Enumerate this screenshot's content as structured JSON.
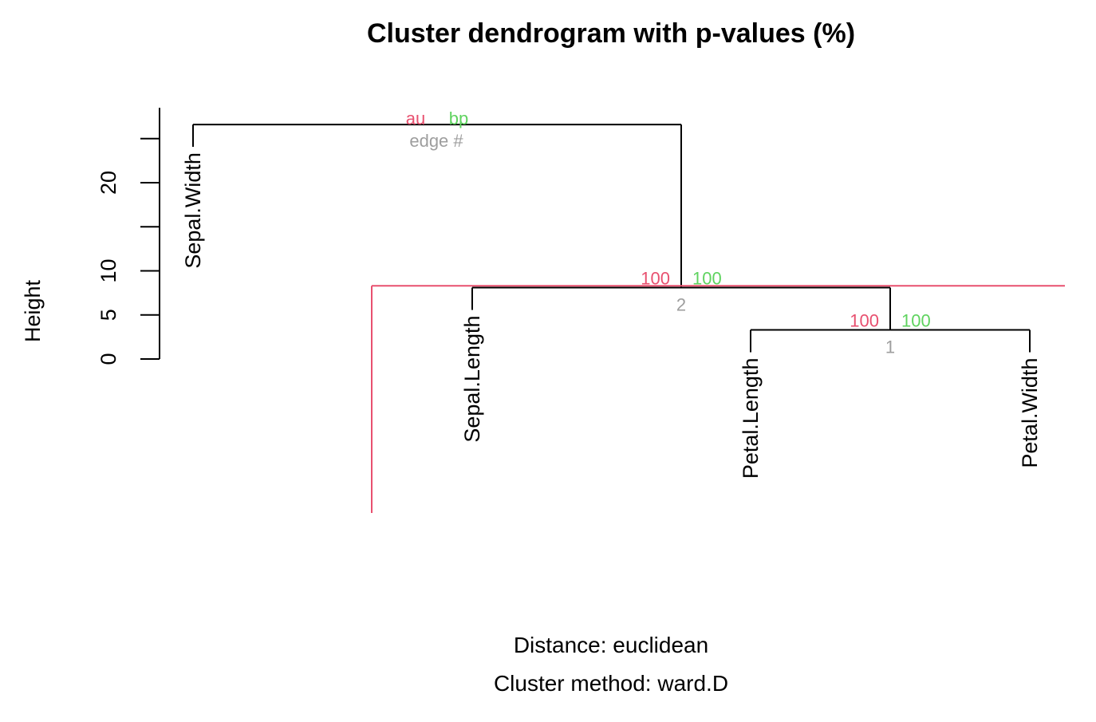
{
  "chart_data": {
    "type": "dendrogram",
    "title": "Cluster dendrogram with p-values (%)",
    "ylabel": "Height",
    "yticks": [
      0,
      5,
      10,
      20
    ],
    "ylim": [
      0,
      25
    ],
    "leaves": [
      "Sepal.Width",
      "Sepal.Length",
      "Petal.Length",
      "Petal.Width"
    ],
    "merges": [
      {
        "edge": "1",
        "left": "Petal.Length",
        "right": "Petal.Width",
        "height": 3.3,
        "au": "100",
        "bp": "100"
      },
      {
        "edge": "2",
        "left": "Sepal.Length",
        "right": "edge 1",
        "height": 8.1,
        "au": "100",
        "bp": "100"
      },
      {
        "edge": "",
        "left": "Sepal.Width",
        "right": "edge 2",
        "height": 26.6,
        "au": "",
        "bp": ""
      }
    ],
    "legend": {
      "au": "au",
      "bp": "bp",
      "edge": "edge #"
    },
    "cut_height": 8.3,
    "colors": {
      "au": "#e8506f",
      "bp": "#5fd35f",
      "edge": "#9e9e9e",
      "highlight": "#e8506f",
      "lines": "#000000"
    },
    "subtitle_distance": "Distance:  euclidean",
    "subtitle_method": "Cluster method: ward.D"
  }
}
